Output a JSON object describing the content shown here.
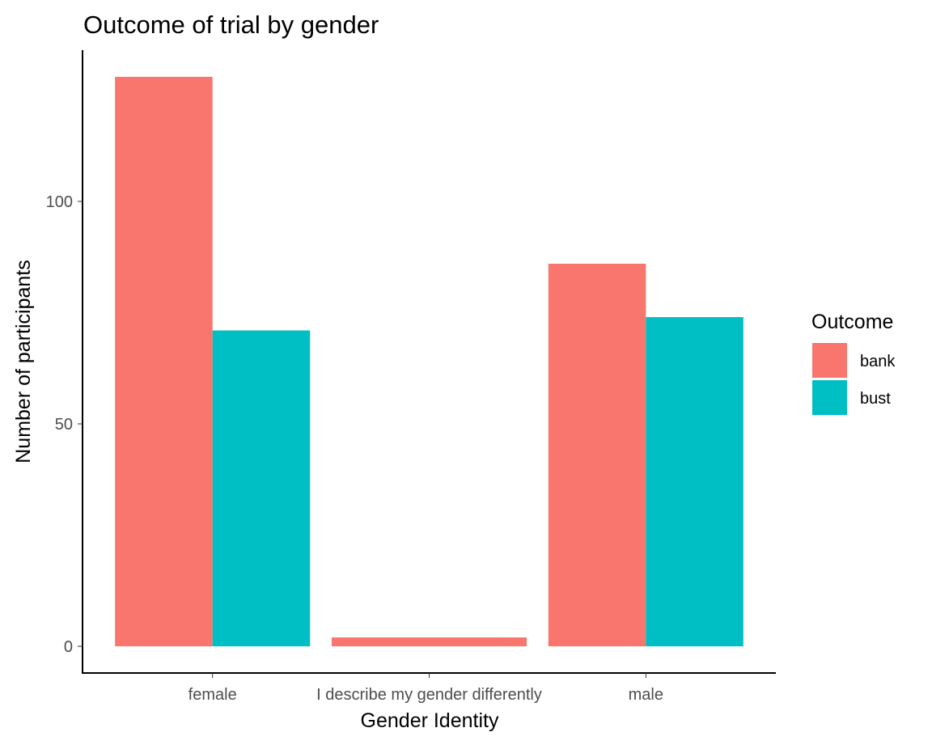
{
  "chart_data": {
    "type": "bar",
    "title": "Outcome of trial by gender",
    "xlabel": "Gender Identity",
    "ylabel": "Number of participants",
    "categories": [
      "female",
      "I describe my gender differently",
      "male"
    ],
    "series": [
      {
        "name": "bank",
        "color": "#F8766D",
        "values": [
          128,
          2,
          86
        ]
      },
      {
        "name": "bust",
        "color": "#00BFC4",
        "values": [
          71,
          null,
          74
        ]
      }
    ],
    "yticks": [
      0,
      50,
      100
    ],
    "ylim": [
      -6,
      134
    ],
    "grid": false,
    "legend": {
      "title": "Outcome",
      "position": "right"
    }
  }
}
